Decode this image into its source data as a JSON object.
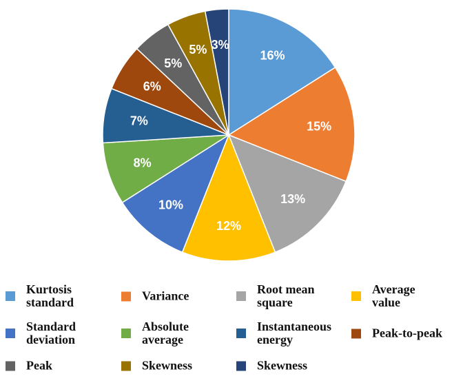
{
  "chart_data": {
    "type": "pie",
    "title": "",
    "start_angle": "12 o'clock, clockwise",
    "legend_position": "bottom",
    "slices": [
      {
        "label": "Kurtosis standard",
        "value": 16,
        "display": "16%",
        "color": "#5B9BD5"
      },
      {
        "label": "Variance",
        "value": 15,
        "display": "15%",
        "color": "#ED7D31"
      },
      {
        "label": "Root mean square",
        "value": 13,
        "display": "13%",
        "color": "#A5A5A5"
      },
      {
        "label": "Average value",
        "value": 12,
        "display": "12%",
        "color": "#FFC000"
      },
      {
        "label": "Standard deviation",
        "value": 10,
        "display": "10%",
        "color": "#4472C4"
      },
      {
        "label": "Absolute average",
        "value": 8,
        "display": "8%",
        "color": "#70AD47"
      },
      {
        "label": "Instantaneous energy",
        "value": 7,
        "display": "7%",
        "color": "#255E91"
      },
      {
        "label": "Peak-to-peak",
        "value": 6,
        "display": "6%",
        "color": "#9E480E"
      },
      {
        "label": "Peak",
        "value": 5,
        "display": "5%",
        "color": "#636363"
      },
      {
        "label": "Skewness",
        "value": 5,
        "display": "5%",
        "color": "#997300"
      },
      {
        "label": "Skewness",
        "value": 3,
        "display": "3%",
        "color": "#264478"
      }
    ],
    "legend_text": [
      "Kurtosis\nstandard",
      "Variance",
      "Root mean\nsquare",
      "Average\nvalue",
      "Standard\ndeviation",
      "Absolute\naverage",
      "Instantaneous\nenergy",
      "Peak-to-peak",
      "Peak",
      "Skewness",
      "Skewness"
    ]
  }
}
